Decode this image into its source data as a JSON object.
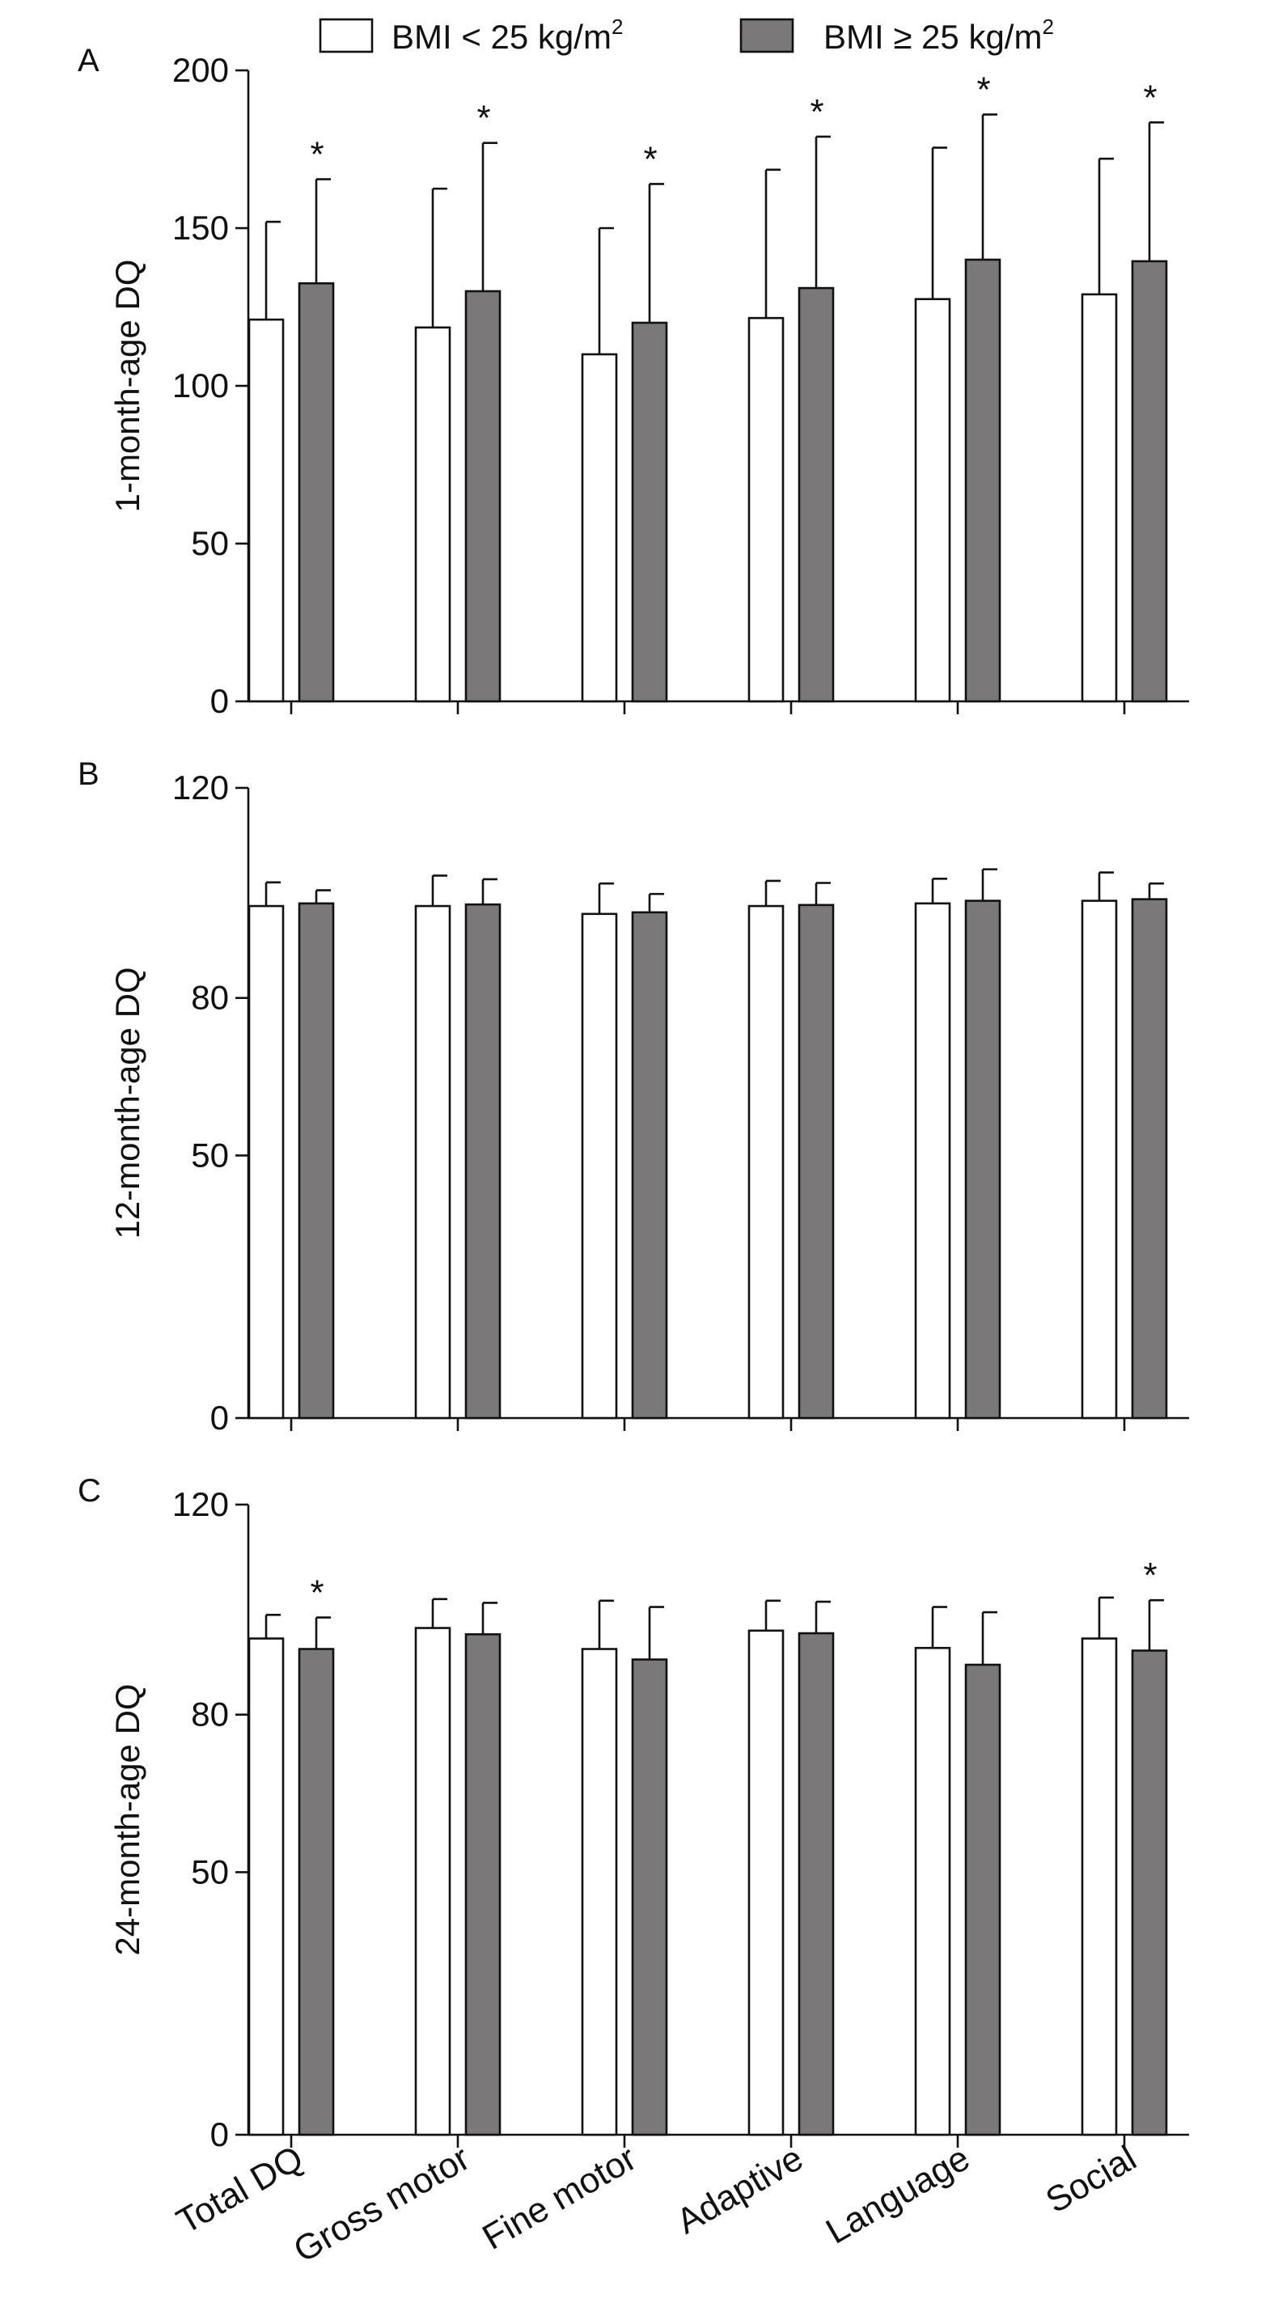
{
  "legend": {
    "items": [
      {
        "label": "BMI < 25 kg/m",
        "sup": "2",
        "color": "#ffffff"
      },
      {
        "label": "BMI ≥ 25 kg/m",
        "sup": "2",
        "color": "#7a7879"
      }
    ]
  },
  "categories": [
    "Total DQ",
    "Gross motor",
    "Fine motor",
    "Adaptive",
    "Language",
    "Social"
  ],
  "chart_data": [
    {
      "type": "bar",
      "panel": "A",
      "ylabel": "1-month-age DQ",
      "ylim": [
        0,
        200
      ],
      "yticks": [
        "0",
        "50",
        "100",
        "150",
        "200"
      ],
      "categories": [
        "Total DQ",
        "Gross motor",
        "Fine motor",
        "Adaptive",
        "Language",
        "Social"
      ],
      "series": [
        {
          "name": "BMI < 25 kg/m2",
          "color": "#ffffff",
          "values": [
            121,
            118.5,
            110,
            121.5,
            127.5,
            129
          ],
          "error": [
            31,
            44,
            40,
            47,
            48,
            43
          ]
        },
        {
          "name": "BMI ≥ 25 kg/m2",
          "color": "#7a7879",
          "values": [
            132.5,
            130,
            120,
            131,
            140,
            139.5
          ],
          "error": [
            33,
            47,
            44,
            48,
            46,
            44
          ]
        }
      ],
      "significance": [
        "*",
        "*",
        "*",
        "*",
        "*",
        "*"
      ],
      "significance_series": 1
    },
    {
      "type": "bar",
      "panel": "B",
      "ylabel": "12-month-age DQ",
      "ylim": [
        0,
        120
      ],
      "yticks": [
        "0",
        "50",
        "80",
        "120"
      ],
      "categories": [
        "Total DQ",
        "Gross motor",
        "Fine motor",
        "Adaptive",
        "Language",
        "Social"
      ],
      "series": [
        {
          "name": "BMI < 25 kg/m2",
          "color": "#ffffff",
          "values": [
            97.5,
            97.5,
            96,
            97.5,
            98,
            98.5
          ],
          "error": [
            4.5,
            5.8,
            5.8,
            4.8,
            4.7,
            5.4
          ]
        },
        {
          "name": "BMI ≥ 25 kg/m2",
          "color": "#7a7879",
          "values": [
            98,
            97.8,
            96.3,
            97.7,
            98.5,
            98.8
          ],
          "error": [
            2.5,
            4.8,
            3.5,
            4.2,
            6.0,
            3.0
          ]
        }
      ],
      "significance": [
        "",
        "",
        "",
        "",
        "",
        ""
      ],
      "significance_series": 1
    },
    {
      "type": "bar",
      "panel": "C",
      "ylabel": "24-month-age DQ",
      "ylim": [
        0,
        120
      ],
      "yticks": [
        "0",
        "50",
        "80",
        "120"
      ],
      "categories": [
        "Total DQ",
        "Gross motor",
        "Fine motor",
        "Adaptive",
        "Language",
        "Social"
      ],
      "series": [
        {
          "name": "BMI < 25 kg/m2",
          "color": "#ffffff",
          "values": [
            94.5,
            96.5,
            92.5,
            96,
            92.7,
            94.5
          ],
          "error": [
            4.5,
            5.5,
            9.2,
            5.7,
            7.8,
            7.8
          ]
        },
        {
          "name": "BMI ≥ 25 kg/m2",
          "color": "#7a7879",
          "values": [
            92.5,
            95.3,
            90.5,
            95.5,
            89.5,
            92.2
          ],
          "error": [
            6.0,
            6.0,
            10.0,
            6.0,
            10.0,
            9.6
          ]
        }
      ],
      "significance": [
        "*",
        "",
        "",
        "",
        "",
        "*"
      ],
      "significance_series": 1
    }
  ]
}
